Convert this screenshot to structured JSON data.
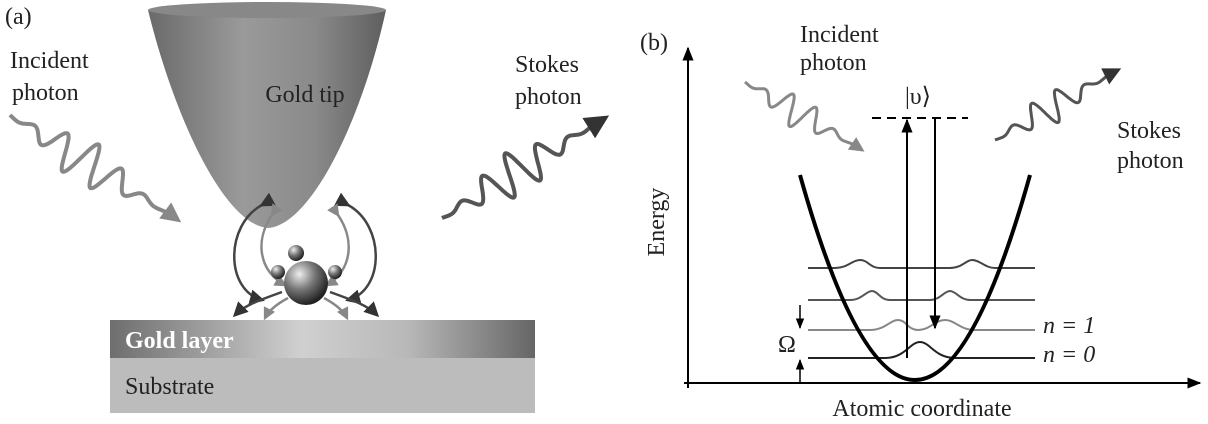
{
  "panel_a": {
    "label": "(a)",
    "incident": [
      "Incident",
      "photon"
    ],
    "tip": "Gold tip",
    "stokes": [
      "Stokes",
      "photon"
    ],
    "gold_layer": "Gold layer",
    "substrate": "Substrate"
  },
  "panel_b": {
    "label": "(b)",
    "incident": [
      "Incident",
      "photon"
    ],
    "virtual_state": "|υ⟩",
    "stokes": [
      "Stokes",
      "photon"
    ],
    "y_axis": "Energy",
    "x_axis": "Atomic coordinate",
    "level_1": "n = 1",
    "level_0": "n = 0",
    "spacing": "Ω"
  }
}
